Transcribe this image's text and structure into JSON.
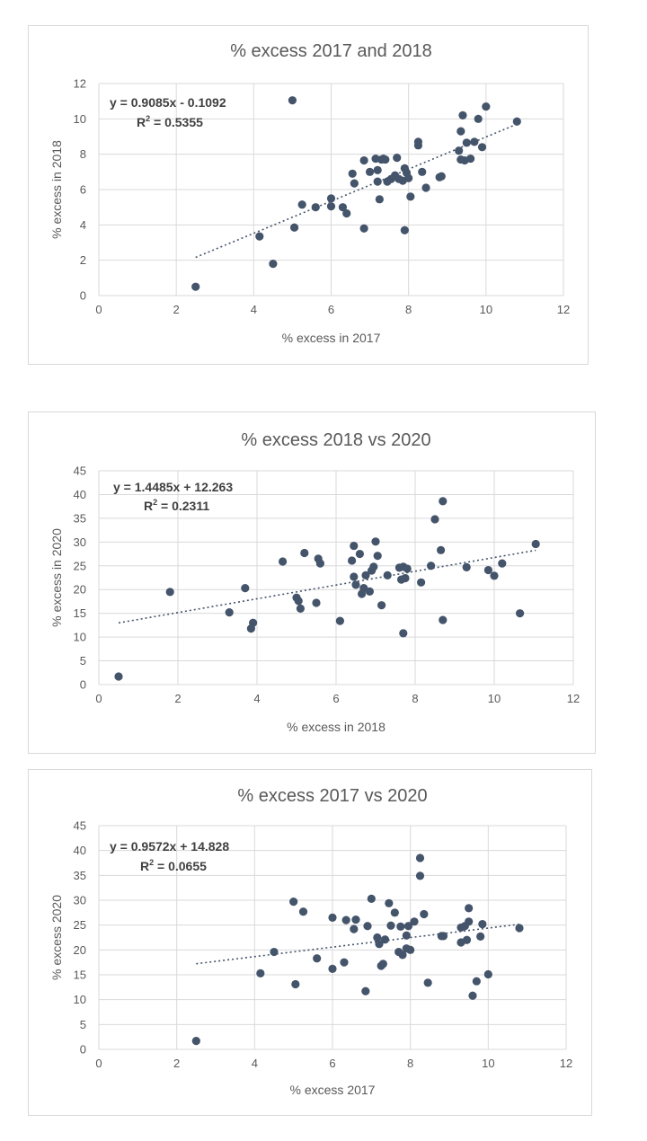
{
  "chart_data": [
    {
      "type": "scatter",
      "title": "% excess 2017 and 2018",
      "xlabel": "% excess in 2017",
      "ylabel": "% excess in 2018",
      "xlim": [
        0,
        12
      ],
      "ylim": [
        0,
        12
      ],
      "xticks": [
        "0",
        "2",
        "4",
        "6",
        "8",
        "10",
        "12"
      ],
      "yticks": [
        "0",
        "2",
        "4",
        "6",
        "8",
        "10",
        "12"
      ],
      "grid": true,
      "legend": "none",
      "trendline": {
        "style": "dotted linear",
        "equation": "y = 0.9085x - 0.1092",
        "r2_label": "R",
        "r2_value": " = 0.5355",
        "slope": 0.9085,
        "intercept": -0.1092,
        "x_range": [
          2.5,
          10.8
        ]
      },
      "points": [
        [
          2.5,
          0.5
        ],
        [
          4.15,
          3.35
        ],
        [
          4.5,
          1.8
        ],
        [
          5.0,
          11.05
        ],
        [
          5.05,
          3.85
        ],
        [
          5.25,
          5.15
        ],
        [
          5.6,
          5.0
        ],
        [
          6.0,
          5.05
        ],
        [
          6.0,
          5.5
        ],
        [
          6.3,
          5.0
        ],
        [
          6.4,
          4.65
        ],
        [
          6.55,
          6.9
        ],
        [
          6.6,
          6.35
        ],
        [
          6.85,
          7.65
        ],
        [
          6.85,
          3.8
        ],
        [
          7.0,
          7.0
        ],
        [
          7.15,
          7.75
        ],
        [
          7.2,
          6.45
        ],
        [
          7.2,
          7.1
        ],
        [
          7.25,
          5.45
        ],
        [
          7.3,
          7.7
        ],
        [
          7.35,
          7.75
        ],
        [
          7.4,
          7.7
        ],
        [
          7.45,
          6.45
        ],
        [
          7.55,
          6.6
        ],
        [
          7.65,
          6.8
        ],
        [
          7.7,
          7.8
        ],
        [
          7.75,
          6.6
        ],
        [
          7.85,
          6.5
        ],
        [
          7.9,
          7.2
        ],
        [
          7.9,
          3.7
        ],
        [
          7.95,
          6.95
        ],
        [
          8.0,
          6.65
        ],
        [
          8.05,
          5.6
        ],
        [
          8.25,
          8.7
        ],
        [
          8.25,
          8.5
        ],
        [
          8.35,
          7.0
        ],
        [
          8.45,
          6.1
        ],
        [
          8.8,
          6.7
        ],
        [
          8.85,
          6.75
        ],
        [
          9.3,
          8.2
        ],
        [
          9.35,
          9.3
        ],
        [
          9.35,
          7.7
        ],
        [
          9.4,
          10.2
        ],
        [
          9.45,
          7.65
        ],
        [
          9.5,
          8.65
        ],
        [
          9.6,
          7.75
        ],
        [
          9.7,
          8.7
        ],
        [
          9.8,
          10.0
        ],
        [
          9.9,
          8.4
        ],
        [
          10.0,
          10.7
        ],
        [
          10.8,
          9.85
        ]
      ]
    },
    {
      "type": "scatter",
      "title": "% excess 2018 vs 2020",
      "xlabel": "% excess in 2018",
      "ylabel": "% excess in 2020",
      "xlim": [
        0,
        12
      ],
      "ylim": [
        0,
        45
      ],
      "xticks": [
        "0",
        "2",
        "4",
        "6",
        "8",
        "10",
        "12"
      ],
      "yticks": [
        "0",
        "5",
        "10",
        "15",
        "20",
        "25",
        "30",
        "35",
        "40",
        "45"
      ],
      "grid": true,
      "legend": "none",
      "trendline": {
        "style": "dotted linear",
        "equation": "y = 1.4485x + 12.263",
        "r2_label": "R",
        "r2_value": " = 0.2311",
        "slope": 1.4485,
        "intercept": 12.263,
        "x_range": [
          0.5,
          11.05
        ]
      },
      "points": [
        [
          0.5,
          1.7
        ],
        [
          1.8,
          19.5
        ],
        [
          3.3,
          15.2
        ],
        [
          3.7,
          20.3
        ],
        [
          3.85,
          11.8
        ],
        [
          3.9,
          13.0
        ],
        [
          4.65,
          25.9
        ],
        [
          5.0,
          18.3
        ],
        [
          5.05,
          17.6
        ],
        [
          5.1,
          16.0
        ],
        [
          5.2,
          27.7
        ],
        [
          5.5,
          17.2
        ],
        [
          5.55,
          26.5
        ],
        [
          5.6,
          25.5
        ],
        [
          6.1,
          13.4
        ],
        [
          6.4,
          26.1
        ],
        [
          6.45,
          29.2
        ],
        [
          6.45,
          22.7
        ],
        [
          6.5,
          21.0
        ],
        [
          6.6,
          27.5
        ],
        [
          6.65,
          19.1
        ],
        [
          6.7,
          20.3
        ],
        [
          6.75,
          23.0
        ],
        [
          6.85,
          19.6
        ],
        [
          6.9,
          24.0
        ],
        [
          6.95,
          24.8
        ],
        [
          7.0,
          30.1
        ],
        [
          7.05,
          27.1
        ],
        [
          7.15,
          16.7
        ],
        [
          7.3,
          23.0
        ],
        [
          7.6,
          24.6
        ],
        [
          7.65,
          22.1
        ],
        [
          7.7,
          10.8
        ],
        [
          7.7,
          24.8
        ],
        [
          7.75,
          22.4
        ],
        [
          7.8,
          24.4
        ],
        [
          8.15,
          21.5
        ],
        [
          8.4,
          25.0
        ],
        [
          8.5,
          34.8
        ],
        [
          8.65,
          28.3
        ],
        [
          8.7,
          38.6
        ],
        [
          8.7,
          13.6
        ],
        [
          9.3,
          24.7
        ],
        [
          9.85,
          24.1
        ],
        [
          10.0,
          22.9
        ],
        [
          10.2,
          25.5
        ],
        [
          10.65,
          15.0
        ],
        [
          11.05,
          29.6
        ]
      ]
    },
    {
      "type": "scatter",
      "title": "% excess 2017 vs 2020",
      "xlabel": "% excess 2017",
      "ylabel": "% excess 2020",
      "xlim": [
        0,
        12
      ],
      "ylim": [
        0,
        45
      ],
      "xticks": [
        "0",
        "2",
        "4",
        "6",
        "8",
        "10",
        "12"
      ],
      "yticks": [
        "0",
        "5",
        "10",
        "15",
        "20",
        "25",
        "30",
        "35",
        "40",
        "45"
      ],
      "grid": true,
      "legend": "none",
      "trendline": {
        "style": "dotted linear",
        "equation": "y = 0.9572x + 14.828",
        "r2_label": "R",
        "r2_value": " = 0.0655",
        "slope": 0.9572,
        "intercept": 14.828,
        "x_range": [
          2.5,
          10.8
        ]
      },
      "points": [
        [
          2.5,
          1.7
        ],
        [
          4.15,
          15.3
        ],
        [
          4.5,
          19.6
        ],
        [
          5.0,
          29.7
        ],
        [
          5.05,
          13.1
        ],
        [
          5.25,
          27.7
        ],
        [
          5.6,
          18.3
        ],
        [
          6.0,
          26.5
        ],
        [
          6.0,
          16.2
        ],
        [
          6.3,
          17.5
        ],
        [
          6.35,
          26.0
        ],
        [
          6.55,
          24.2
        ],
        [
          6.6,
          26.1
        ],
        [
          6.85,
          11.7
        ],
        [
          6.9,
          24.8
        ],
        [
          7.0,
          30.3
        ],
        [
          7.15,
          22.5
        ],
        [
          7.2,
          21.2
        ],
        [
          7.25,
          16.8
        ],
        [
          7.3,
          17.2
        ],
        [
          7.35,
          22.1
        ],
        [
          7.45,
          29.4
        ],
        [
          7.5,
          24.9
        ],
        [
          7.6,
          27.5
        ],
        [
          7.7,
          19.6
        ],
        [
          7.75,
          24.7
        ],
        [
          7.8,
          19.0
        ],
        [
          7.9,
          20.3
        ],
        [
          7.9,
          22.9
        ],
        [
          7.95,
          24.8
        ],
        [
          8.0,
          20.0
        ],
        [
          8.1,
          25.7
        ],
        [
          8.25,
          38.5
        ],
        [
          8.25,
          34.9
        ],
        [
          8.35,
          27.2
        ],
        [
          8.45,
          13.4
        ],
        [
          8.8,
          22.8
        ],
        [
          8.85,
          22.8
        ],
        [
          9.3,
          24.5
        ],
        [
          9.3,
          21.5
        ],
        [
          9.4,
          24.8
        ],
        [
          9.45,
          22.0
        ],
        [
          9.5,
          25.7
        ],
        [
          9.5,
          28.4
        ],
        [
          9.6,
          10.8
        ],
        [
          9.7,
          13.7
        ],
        [
          9.8,
          22.7
        ],
        [
          9.85,
          25.2
        ],
        [
          10.0,
          15.1
        ],
        [
          10.8,
          24.4
        ]
      ]
    }
  ]
}
